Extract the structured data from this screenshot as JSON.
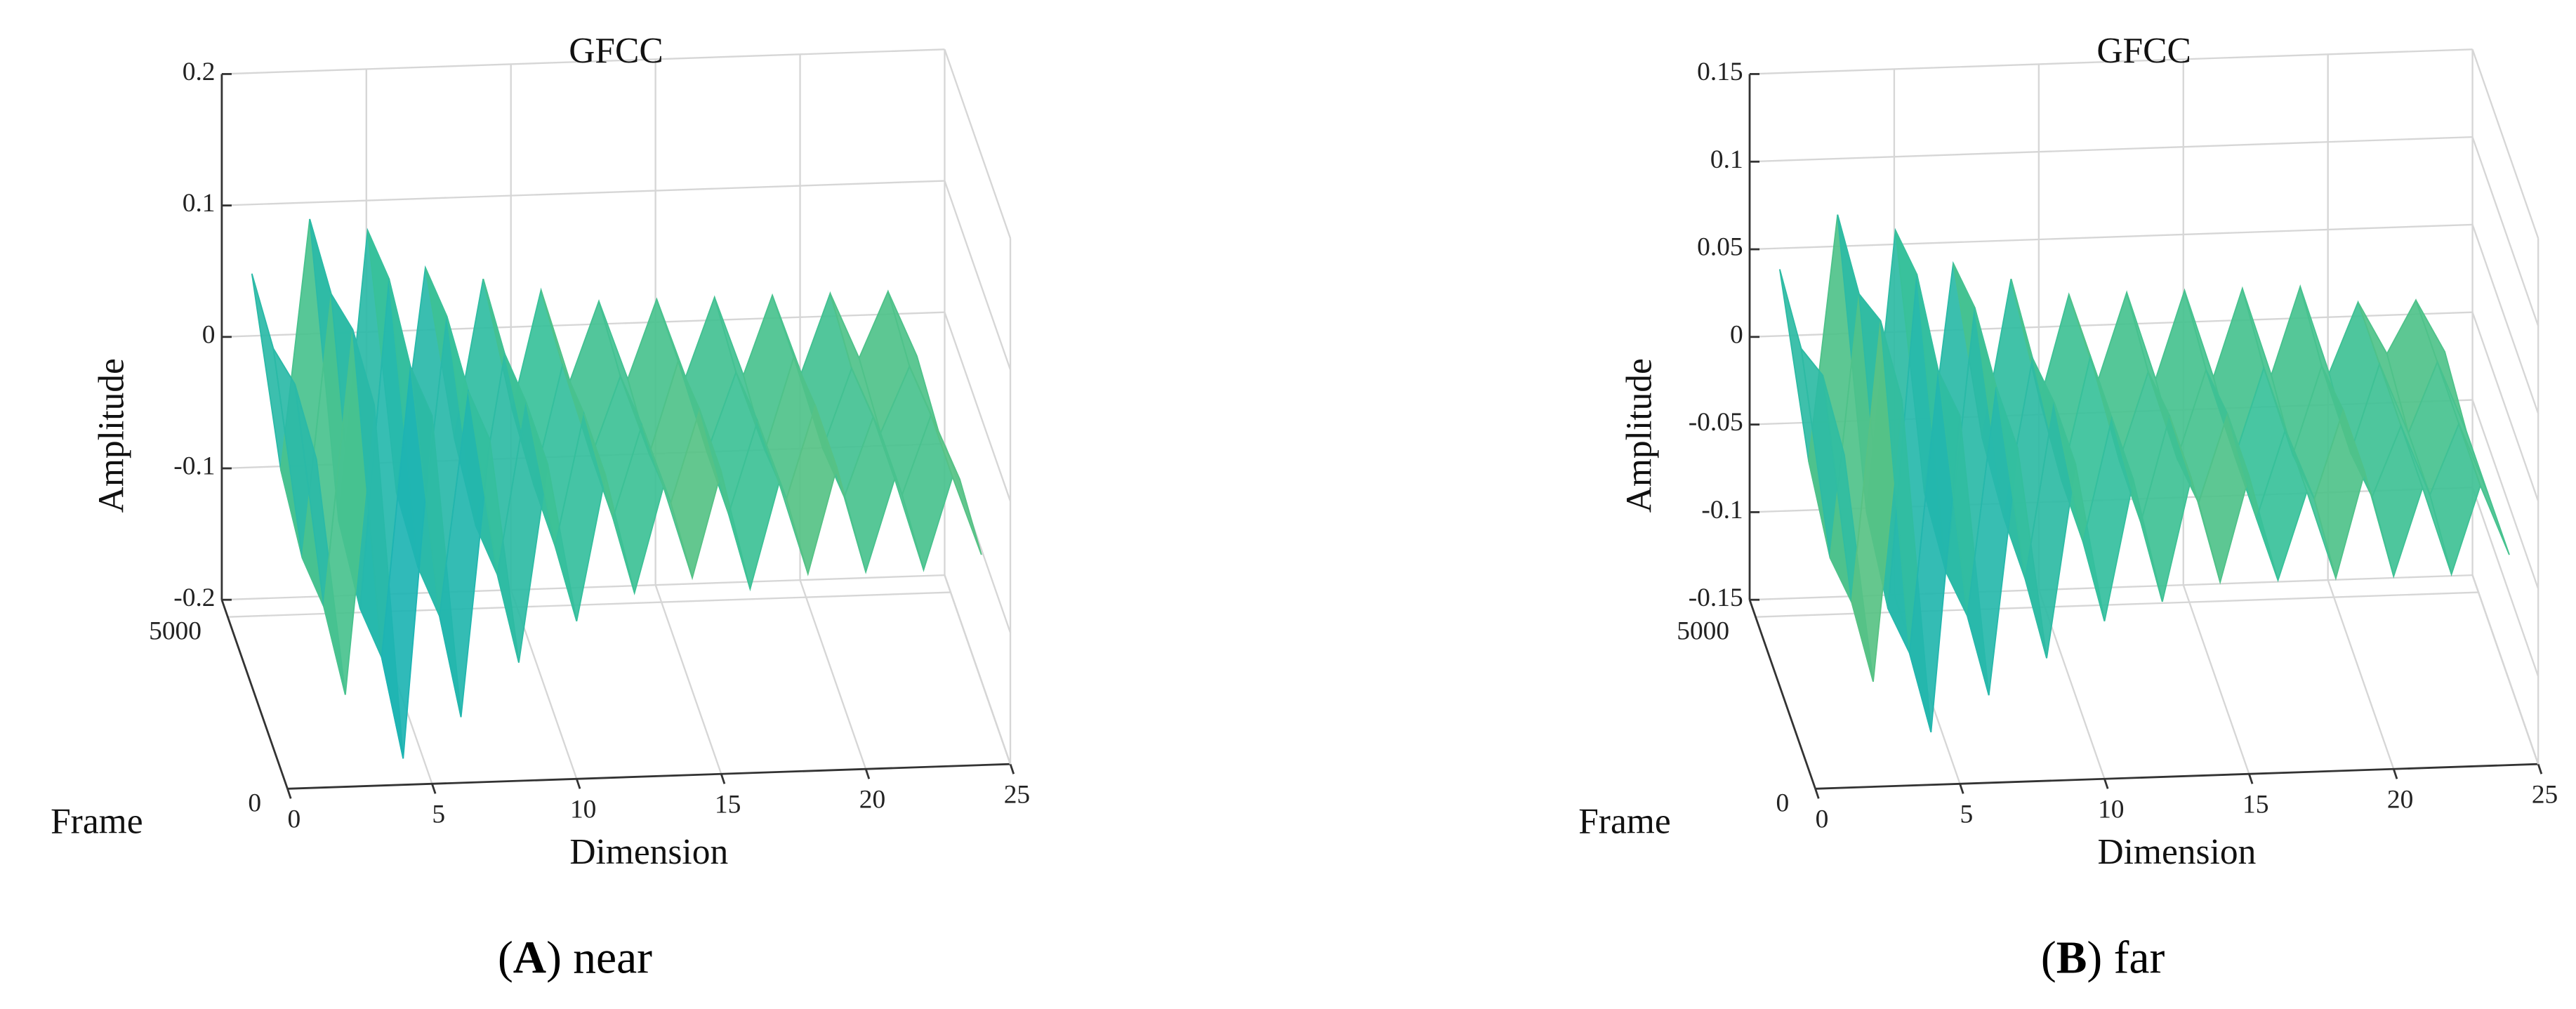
{
  "chart_data": [
    {
      "type": "waterfall3d",
      "title": "GFCC",
      "caption": [
        "(",
        "A",
        ") near"
      ],
      "x_label": "Dimension",
      "frame_label": "Frame",
      "value_label": "Amplitude",
      "x": [
        1,
        2,
        3,
        4,
        5,
        6,
        7,
        8,
        9,
        10,
        11,
        12,
        13,
        14,
        15,
        16,
        17,
        18,
        19,
        20,
        21,
        22,
        23,
        24
      ],
      "frames": [
        0,
        1800,
        3600,
        5400
      ],
      "z": [
        [
          0.05,
          -0.13,
          0.09,
          -0.18,
          0.08,
          -0.15,
          0.06,
          -0.11,
          0.04,
          -0.08,
          0.03,
          -0.06,
          0.02,
          -0.05,
          0.03,
          -0.06,
          0.02,
          -0.05,
          0.03,
          -0.05,
          0.02,
          -0.05,
          0.02,
          -0.04
        ],
        [
          0.06,
          -0.11,
          0.1,
          -0.15,
          0.07,
          -0.12,
          0.05,
          -0.09,
          0.04,
          -0.07,
          0.03,
          -0.05,
          0.02,
          -0.04,
          0.03,
          -0.05,
          0.02,
          -0.04,
          0.03,
          -0.04,
          0.02,
          -0.04,
          0.02,
          -0.03
        ],
        [
          0.04,
          -0.12,
          0.08,
          -0.16,
          0.09,
          -0.13,
          0.06,
          -0.1,
          0.03,
          -0.07,
          0.02,
          -0.05,
          0.01,
          -0.05,
          0.02,
          -0.05,
          0.01,
          -0.05,
          0.02,
          -0.05,
          0.01,
          -0.04,
          0.01,
          -0.04
        ],
        [
          0.05,
          -0.1,
          0.09,
          -0.14,
          0.08,
          -0.12,
          0.05,
          -0.08,
          0.04,
          -0.06,
          0.03,
          -0.04,
          0.02,
          -0.04,
          0.02,
          -0.04,
          0.02,
          -0.04,
          0.02,
          -0.04,
          0.02,
          -0.03,
          0.02,
          -0.03
        ]
      ],
      "xlim": [
        0,
        25
      ],
      "xticks": [
        0,
        5,
        10,
        15,
        20,
        25
      ],
      "framelim": [
        0,
        5500
      ],
      "frameticks": [
        0,
        5000
      ],
      "ylim": [
        -0.2,
        0.2
      ],
      "yticks": [
        -0.2,
        -0.1,
        0,
        0.1,
        0.2
      ],
      "grid": true,
      "colormap": [
        "#352a87",
        "#2c5de0",
        "#0f87d8",
        "#14aebd",
        "#38c19a",
        "#8fc45e",
        "#d9ba2e",
        "#f9d91d"
      ]
    },
    {
      "type": "waterfall3d",
      "title": "GFCC",
      "caption": [
        "(",
        "B",
        ") far"
      ],
      "x_label": "Dimension",
      "frame_label": "Frame",
      "value_label": "Amplitude",
      "x": [
        1,
        2,
        3,
        4,
        5,
        6,
        7,
        8,
        9,
        10,
        11,
        12,
        13,
        14,
        15,
        16,
        17,
        18,
        19,
        20,
        21,
        22,
        23,
        24
      ],
      "frames": [
        0,
        1800,
        3600,
        5400
      ],
      "z": [
        [
          0.04,
          -0.09,
          0.07,
          -0.12,
          0.06,
          -0.1,
          0.04,
          -0.08,
          0.03,
          -0.06,
          0.02,
          -0.05,
          0.02,
          -0.04,
          0.02,
          -0.04,
          0.01,
          -0.04,
          0.02,
          -0.04,
          0.01,
          -0.04,
          0.01,
          -0.03
        ],
        [
          0.05,
          -0.08,
          0.08,
          -0.11,
          0.05,
          -0.09,
          0.04,
          -0.07,
          0.03,
          -0.05,
          0.02,
          -0.04,
          0.02,
          -0.03,
          0.02,
          -0.04,
          0.01,
          -0.03,
          0.02,
          -0.03,
          0.01,
          -0.03,
          0.01,
          -0.03
        ],
        [
          0.03,
          -0.09,
          0.06,
          -0.12,
          0.07,
          -0.1,
          0.05,
          -0.07,
          0.02,
          -0.05,
          0.02,
          -0.04,
          0.01,
          -0.04,
          0.01,
          -0.04,
          0.01,
          -0.04,
          0.01,
          -0.04,
          0.01,
          -0.03,
          0.01,
          -0.03
        ],
        [
          0.04,
          -0.07,
          0.07,
          -0.1,
          0.06,
          -0.09,
          0.04,
          -0.06,
          0.03,
          -0.04,
          0.02,
          -0.03,
          0.02,
          -0.03,
          0.02,
          -0.03,
          0.02,
          -0.03,
          0.02,
          -0.03,
          0.01,
          -0.02,
          0.01,
          -0.02
        ]
      ],
      "xlim": [
        0,
        25
      ],
      "xticks": [
        0,
        5,
        10,
        15,
        20,
        25
      ],
      "framelim": [
        0,
        5500
      ],
      "frameticks": [
        0,
        5000
      ],
      "ylim": [
        -0.15,
        0.15
      ],
      "yticks": [
        -0.15,
        -0.1,
        -0.05,
        0,
        0.05,
        0.1,
        0.15
      ],
      "grid": true,
      "colormap": [
        "#352a87",
        "#2c5de0",
        "#0f87d8",
        "#14aebd",
        "#38c19a",
        "#8fc45e",
        "#d9ba2e",
        "#f9d91d"
      ]
    }
  ]
}
